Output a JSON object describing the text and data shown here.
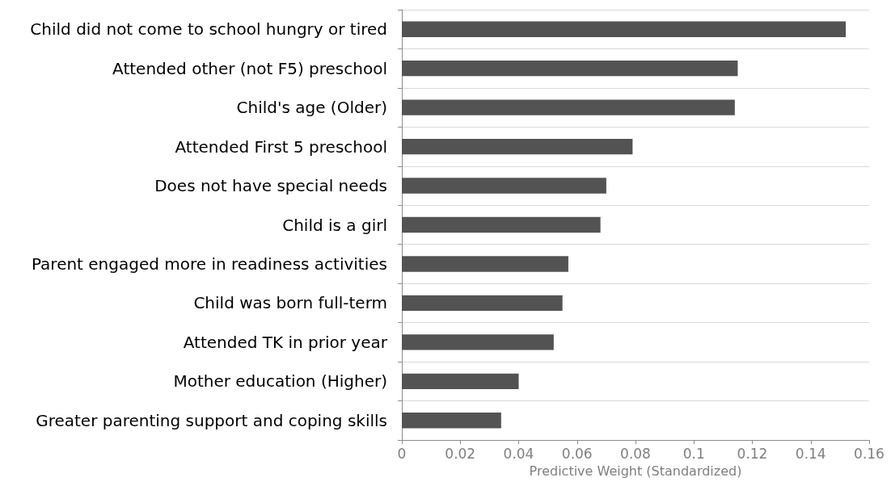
{
  "chart_data": {
    "type": "bar",
    "orientation": "horizontal",
    "xlabel": "Predictive Weight (Standardized)",
    "categories": [
      "Child did not come to school hungry or tired",
      "Attended other (not F5) preschool",
      "Child's age (Older)",
      "Attended First 5 preschool",
      "Does not have special needs",
      "Child is a girl",
      "Parent engaged more in readiness activities",
      "Child was born full-term",
      "Attended TK in prior year",
      "Mother education (Higher)",
      "Greater parenting support and coping skills"
    ],
    "values": [
      0.152,
      0.115,
      0.114,
      0.079,
      0.07,
      0.068,
      0.057,
      0.055,
      0.052,
      0.04,
      0.034
    ],
    "color": "#535353",
    "xlim": [
      0,
      0.16
    ],
    "xticks": [
      0,
      0.02,
      0.04,
      0.06,
      0.08,
      0.1,
      0.12,
      0.14,
      0.16
    ],
    "grid": "y"
  }
}
